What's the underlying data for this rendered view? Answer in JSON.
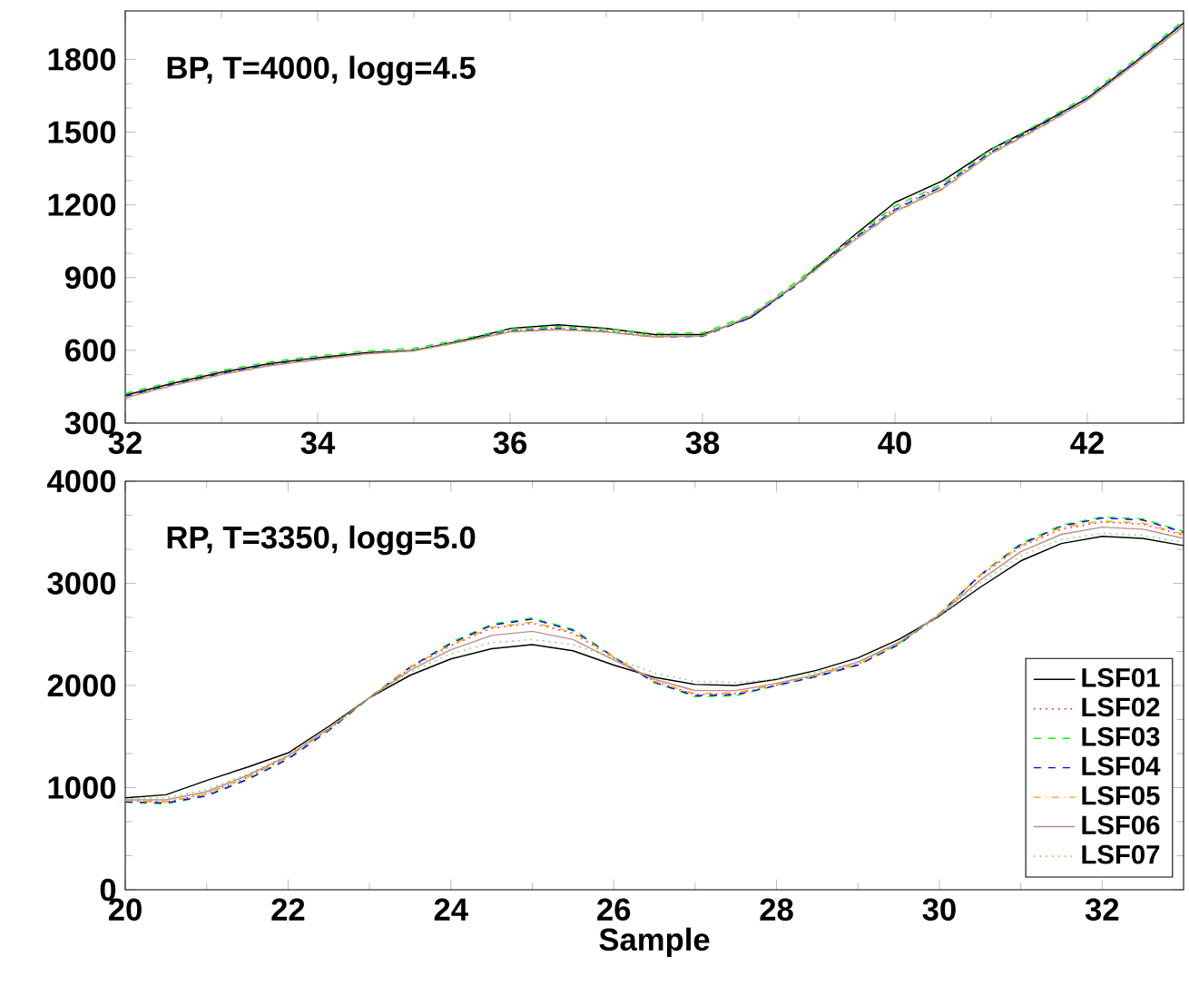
{
  "chart_data": [
    {
      "type": "line",
      "title": "BP, T=4000, logg=4.5",
      "xlim": [
        32,
        43
      ],
      "ylim": [
        300,
        2000
      ],
      "xticks": [
        32,
        34,
        36,
        38,
        40,
        42
      ],
      "yticks": [
        300,
        600,
        900,
        1200,
        1500,
        1800
      ],
      "grid": false,
      "legend": false,
      "x": [
        32,
        32.5,
        33,
        33.5,
        34,
        34.5,
        35,
        35.5,
        36,
        36.5,
        37,
        37.5,
        38,
        38.5,
        39,
        39.5,
        40,
        40.5,
        41,
        41.5,
        42,
        42.5,
        43
      ],
      "series": [
        {
          "color": "#000000",
          "line_style": "solid",
          "values": [
            415,
            465,
            510,
            545,
            570,
            590,
            600,
            640,
            690,
            705,
            690,
            665,
            665,
            735,
            880,
            1050,
            1210,
            1300,
            1430,
            1530,
            1640,
            1790,
            1950
          ]
        },
        {
          "color": "#ff0000",
          "line_style": "dotted",
          "values": [
            412,
            462,
            507,
            542,
            567,
            588,
            600,
            638,
            682,
            692,
            682,
            660,
            662,
            738,
            880,
            1042,
            1185,
            1280,
            1420,
            1525,
            1640,
            1790,
            1950
          ]
        },
        {
          "color": "#00ff00",
          "line_style": "dashed",
          "values": [
            422,
            472,
            517,
            552,
            577,
            597,
            608,
            646,
            688,
            698,
            688,
            670,
            672,
            746,
            890,
            1048,
            1195,
            1288,
            1428,
            1535,
            1650,
            1800,
            1960
          ]
        },
        {
          "color": "#0000ff",
          "line_style": "dashed",
          "values": [
            410,
            460,
            505,
            540,
            565,
            587,
            600,
            638,
            680,
            690,
            678,
            655,
            658,
            735,
            875,
            1040,
            1180,
            1278,
            1418,
            1525,
            1640,
            1790,
            1950
          ]
        },
        {
          "color": "#ffa500",
          "line_style": "dashdot",
          "values": [
            405,
            455,
            500,
            537,
            562,
            585,
            598,
            635,
            675,
            685,
            675,
            655,
            660,
            742,
            882,
            1030,
            1170,
            1265,
            1410,
            1515,
            1630,
            1780,
            1935
          ]
        },
        {
          "color": "#bc8f8f",
          "line_style": "solid",
          "values": [
            405,
            456,
            500,
            537,
            562,
            585,
            598,
            636,
            676,
            686,
            676,
            656,
            660,
            742,
            880,
            1032,
            1172,
            1268,
            1412,
            1518,
            1632,
            1782,
            1938
          ]
        },
        {
          "color": "#66cc33",
          "line_style": "dotted",
          "values": [
            408,
            458,
            503,
            539,
            564,
            586,
            599,
            637,
            678,
            688,
            678,
            658,
            661,
            740,
            880,
            1036,
            1178,
            1272,
            1415,
            1520,
            1635,
            1785,
            1940
          ]
        }
      ]
    },
    {
      "type": "line",
      "title": "RP, T=3350, logg=5.0",
      "xlabel": "Sample",
      "xlim": [
        20,
        33
      ],
      "ylim": [
        0,
        4000
      ],
      "xticks": [
        20,
        22,
        24,
        26,
        28,
        30,
        32
      ],
      "yticks": [
        0,
        1000,
        2000,
        3000,
        4000
      ],
      "grid": false,
      "legend": "bottom right",
      "x": [
        20,
        20.5,
        21,
        21.5,
        22,
        22.5,
        23,
        23.5,
        24,
        24.5,
        25,
        25.5,
        26,
        26.5,
        27,
        27.5,
        28,
        28.5,
        29,
        29.5,
        30,
        30.5,
        31,
        31.5,
        32,
        32.5,
        33
      ],
      "series": [
        {
          "name": "LSF01",
          "color": "#000000",
          "line_style": "solid",
          "values": [
            900,
            930,
            1070,
            1200,
            1340,
            1600,
            1880,
            2100,
            2260,
            2360,
            2400,
            2340,
            2200,
            2080,
            2010,
            2000,
            2060,
            2150,
            2270,
            2450,
            2680,
            2960,
            3220,
            3390,
            3460,
            3440,
            3370
          ]
        },
        {
          "name": "LSF02",
          "color": "#ff0000",
          "line_style": "dotted",
          "values": [
            870,
            860,
            940,
            1100,
            1300,
            1570,
            1880,
            2170,
            2390,
            2560,
            2610,
            2510,
            2270,
            2040,
            1910,
            1920,
            2000,
            2100,
            2210,
            2410,
            2700,
            3070,
            3360,
            3530,
            3600,
            3580,
            3470
          ]
        },
        {
          "name": "LSF03",
          "color": "#00ff00",
          "line_style": "dashed",
          "values": [
            860,
            840,
            920,
            1080,
            1280,
            1560,
            1880,
            2180,
            2420,
            2600,
            2660,
            2550,
            2280,
            2030,
            1890,
            1900,
            2000,
            2090,
            2200,
            2400,
            2700,
            3080,
            3390,
            3570,
            3650,
            3630,
            3510
          ]
        },
        {
          "name": "LSF04",
          "color": "#0000ff",
          "line_style": "dashed",
          "values": [
            860,
            850,
            920,
            1080,
            1280,
            1560,
            1880,
            2180,
            2410,
            2590,
            2650,
            2540,
            2280,
            2030,
            1900,
            1910,
            2000,
            2090,
            2200,
            2400,
            2700,
            3080,
            3380,
            3560,
            3640,
            3620,
            3500
          ]
        },
        {
          "name": "LSF05",
          "color": "#ffa500",
          "line_style": "dashdot",
          "values": [
            870,
            860,
            940,
            1100,
            1300,
            1570,
            1880,
            2180,
            2400,
            2570,
            2620,
            2520,
            2280,
            2040,
            1920,
            1930,
            2010,
            2100,
            2210,
            2410,
            2700,
            3080,
            3370,
            3550,
            3610,
            3590,
            3480
          ]
        },
        {
          "name": "LSF06",
          "color": "#bc8f8f",
          "line_style": "solid",
          "values": [
            880,
            880,
            960,
            1120,
            1310,
            1580,
            1880,
            2150,
            2350,
            2490,
            2530,
            2450,
            2250,
            2060,
            1950,
            1950,
            2020,
            2110,
            2230,
            2420,
            2690,
            3030,
            3310,
            3480,
            3550,
            3530,
            3440
          ]
        },
        {
          "name": "LSF07",
          "color": "#66cc33",
          "line_style": "dotted",
          "values": [
            890,
            900,
            980,
            1130,
            1320,
            1590,
            1880,
            2130,
            2310,
            2420,
            2450,
            2400,
            2270,
            2120,
            2040,
            2030,
            2060,
            2130,
            2230,
            2410,
            2670,
            3000,
            3270,
            3430,
            3490,
            3470,
            3400
          ]
        }
      ]
    }
  ]
}
